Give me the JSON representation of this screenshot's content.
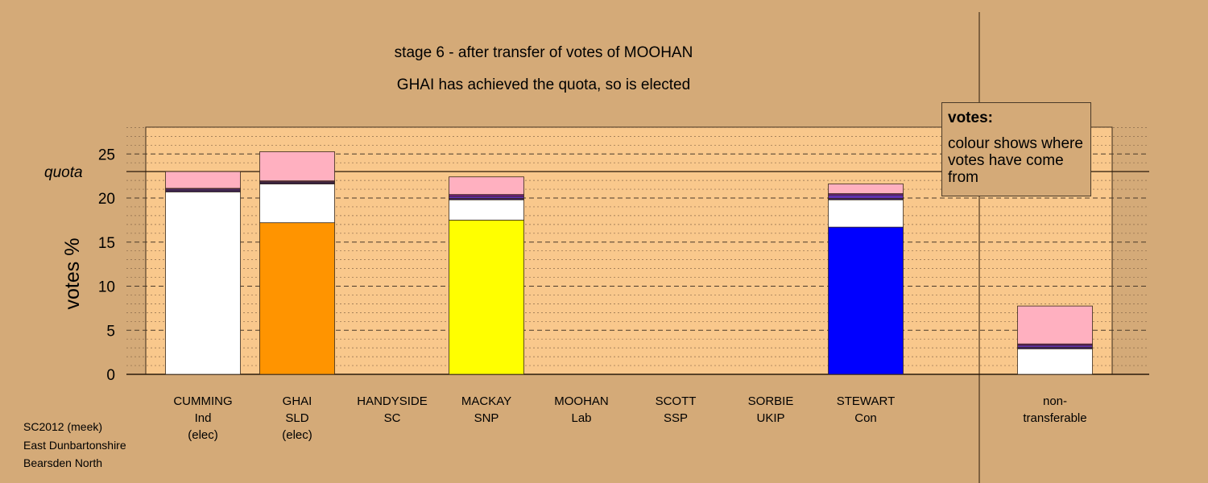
{
  "title_line1": "stage 6 - after transfer of votes of MOOHAN",
  "title_line2": "GHAI has achieved the quota, so is elected",
  "footer": [
    "SC2012 (meek)",
    "East Dunbartonshire",
    "Bearsden North"
  ],
  "legend": {
    "title": "votes:",
    "text": "colour shows where votes have come from"
  },
  "colors": {
    "background": "#D4AA78",
    "plot_background": "#F9C88C",
    "Ind": "#FFFFFF",
    "SLD": "#FF9400",
    "SNP": "#FFFF00",
    "Con": "#0000FF",
    "Lab": "#FFB0C0",
    "SSP": "#7A1A8C",
    "UKIP": "#6030B0",
    "SC": "#2A1060"
  },
  "chart_data": {
    "type": "bar",
    "stacked": true,
    "ylabel": "votes %",
    "yticks": [
      0,
      5,
      10,
      15,
      20,
      25
    ],
    "ylim": [
      0,
      28
    ],
    "quota": 23.0,
    "quota_label": "quota",
    "grid": true,
    "categories": [
      {
        "name": "CUMMING",
        "party": "Ind",
        "status": "(elec)"
      },
      {
        "name": "GHAI",
        "party": "SLD",
        "status": "(elec)"
      },
      {
        "name": "HANDYSIDE",
        "party": "SC",
        "status": ""
      },
      {
        "name": "MACKAY",
        "party": "SNP",
        "status": ""
      },
      {
        "name": "MOOHAN",
        "party": "Lab",
        "status": ""
      },
      {
        "name": "SCOTT",
        "party": "SSP",
        "status": ""
      },
      {
        "name": "SORBIE",
        "party": "UKIP",
        "status": ""
      },
      {
        "name": "STEWART",
        "party": "Con",
        "status": ""
      },
      {
        "name": "non-",
        "party": "transferable",
        "status": ""
      }
    ],
    "bars": [
      {
        "segments": [
          {
            "from": "Ind",
            "value": 20.7
          },
          {
            "from": "SC",
            "value": 0.15
          },
          {
            "from": "UKIP",
            "value": 0.15
          },
          {
            "from": "SSP",
            "value": 0.1
          },
          {
            "from": "Lab",
            "value": 1.9
          }
        ]
      },
      {
        "segments": [
          {
            "from": "SLD",
            "value": 17.2
          },
          {
            "from": "Ind",
            "value": 4.4
          },
          {
            "from": "SC",
            "value": 0.15
          },
          {
            "from": "UKIP",
            "value": 0.1
          },
          {
            "from": "SSP",
            "value": 0.1
          },
          {
            "from": "Lab",
            "value": 3.3
          }
        ]
      },
      {
        "segments": []
      },
      {
        "segments": [
          {
            "from": "SNP",
            "value": 17.5
          },
          {
            "from": "Ind",
            "value": 2.3
          },
          {
            "from": "SC",
            "value": 0.15
          },
          {
            "from": "UKIP",
            "value": 0.25
          },
          {
            "from": "SSP",
            "value": 0.2
          },
          {
            "from": "Lab",
            "value": 2.0
          }
        ]
      },
      {
        "segments": []
      },
      {
        "segments": []
      },
      {
        "segments": []
      },
      {
        "segments": [
          {
            "from": "Con",
            "value": 16.7
          },
          {
            "from": "Ind",
            "value": 3.1
          },
          {
            "from": "SC",
            "value": 0.15
          },
          {
            "from": "UKIP",
            "value": 0.4
          },
          {
            "from": "SSP",
            "value": 0.15
          },
          {
            "from": "Lab",
            "value": 1.1
          }
        ]
      },
      {
        "segments": [
          {
            "from": "Ind",
            "value": 2.9
          },
          {
            "from": "SC",
            "value": 0.15
          },
          {
            "from": "UKIP",
            "value": 0.25
          },
          {
            "from": "SSP",
            "value": 0.15
          },
          {
            "from": "Lab",
            "value": 4.3
          }
        ]
      }
    ]
  }
}
